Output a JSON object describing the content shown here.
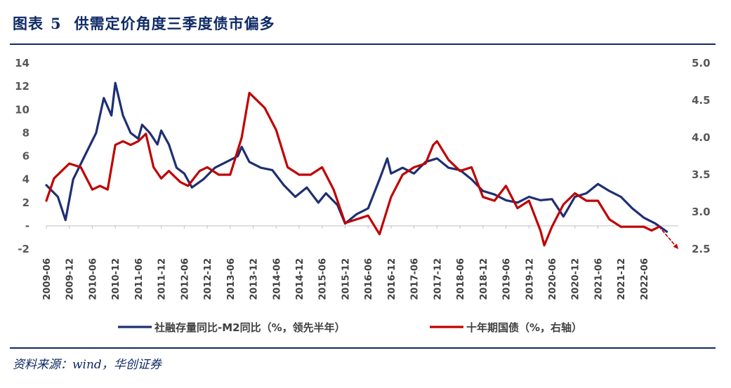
{
  "header": {
    "figure_label": "图表",
    "figure_number": "5",
    "title": "供需定价角度三季度债市偏多"
  },
  "source": "资料来源：wind，华创证券",
  "colors": {
    "navy": "#0f2a66",
    "series1": "#1f2f73",
    "series2": "#c00000",
    "axis_text": "#595959"
  },
  "chart_data": {
    "type": "line",
    "title": "供需定价角度三季度债市偏多",
    "xlabel": "",
    "y_left": {
      "lim": [
        -2,
        14
      ],
      "ticks": [
        14,
        12,
        10,
        8,
        6,
        4,
        2,
        0,
        -2
      ],
      "tick_labels": [
        "14",
        "12",
        "10",
        "8",
        "6",
        "4",
        "2",
        "-",
        "-2"
      ]
    },
    "y_right": {
      "lim": [
        2.5,
        5.0
      ],
      "ticks": [
        5.0,
        4.5,
        4.0,
        3.5,
        3.0,
        2.5
      ],
      "tick_labels": [
        "5.0",
        "4.5",
        "4.0",
        "3.5",
        "3.0",
        "2.5"
      ]
    },
    "x_range": [
      "2009-06",
      "2023-03"
    ],
    "x_tick_labels": [
      "2009-06",
      "2009-12",
      "2010-06",
      "2010-12",
      "2011-06",
      "2011-12",
      "2012-06",
      "2012-12",
      "2013-06",
      "2013-12",
      "2014-06",
      "2014-12",
      "2015-06",
      "2015-12",
      "2016-06",
      "2016-12",
      "2017-06",
      "2017-12",
      "2018-06",
      "2018-12",
      "2019-06",
      "2019-12",
      "2020-06",
      "2020-12",
      "2021-06",
      "2021-12",
      "2022-06"
    ],
    "legend": [
      "社融存量同比-M2同比（%，领先半年）",
      "十年期国债（%，右轴）"
    ],
    "series": [
      {
        "name": "社融存量同比-M2同比（%，领先半年）",
        "axis": "left",
        "points": [
          [
            "2009-06",
            3.5
          ],
          [
            "2009-09",
            2.5
          ],
          [
            "2009-11",
            0.5
          ],
          [
            "2010-01",
            4.0
          ],
          [
            "2010-04",
            6.0
          ],
          [
            "2010-07",
            8.0
          ],
          [
            "2010-09",
            11.0
          ],
          [
            "2010-11",
            9.5
          ],
          [
            "2010-12",
            12.3
          ],
          [
            "2011-02",
            9.5
          ],
          [
            "2011-04",
            8.0
          ],
          [
            "2011-06",
            7.5
          ],
          [
            "2011-07",
            8.7
          ],
          [
            "2011-09",
            8.0
          ],
          [
            "2011-11",
            7.0
          ],
          [
            "2011-12",
            8.2
          ],
          [
            "2012-02",
            7.0
          ],
          [
            "2012-04",
            5.0
          ],
          [
            "2012-06",
            4.5
          ],
          [
            "2012-08",
            3.3
          ],
          [
            "2012-11",
            4.0
          ],
          [
            "2013-02",
            5.0
          ],
          [
            "2013-05",
            5.5
          ],
          [
            "2013-08",
            6.0
          ],
          [
            "2013-09",
            6.8
          ],
          [
            "2013-11",
            5.5
          ],
          [
            "2014-02",
            5.0
          ],
          [
            "2014-05",
            4.8
          ],
          [
            "2014-08",
            3.5
          ],
          [
            "2014-11",
            2.5
          ],
          [
            "2015-02",
            3.3
          ],
          [
            "2015-05",
            2.0
          ],
          [
            "2015-07",
            2.8
          ],
          [
            "2015-10",
            1.8
          ],
          [
            "2015-12",
            0.2
          ],
          [
            "2016-03",
            1.0
          ],
          [
            "2016-06",
            1.5
          ],
          [
            "2016-09",
            4.0
          ],
          [
            "2016-11",
            5.8
          ],
          [
            "2016-12",
            4.5
          ],
          [
            "2017-03",
            5.0
          ],
          [
            "2017-06",
            4.5
          ],
          [
            "2017-09",
            5.5
          ],
          [
            "2017-12",
            5.8
          ],
          [
            "2018-03",
            5.0
          ],
          [
            "2018-06",
            4.8
          ],
          [
            "2018-09",
            4.0
          ],
          [
            "2018-12",
            3.0
          ],
          [
            "2019-03",
            2.7
          ],
          [
            "2019-06",
            2.2
          ],
          [
            "2019-09",
            2.0
          ],
          [
            "2019-12",
            2.5
          ],
          [
            "2020-03",
            2.2
          ],
          [
            "2020-06",
            2.3
          ],
          [
            "2020-09",
            0.8
          ],
          [
            "2020-12",
            2.5
          ],
          [
            "2021-03",
            2.8
          ],
          [
            "2021-06",
            3.6
          ],
          [
            "2021-09",
            3.0
          ],
          [
            "2021-12",
            2.5
          ],
          [
            "2022-03",
            1.5
          ],
          [
            "2022-06",
            0.7
          ],
          [
            "2022-09",
            0.2
          ],
          [
            "2022-12",
            -0.5
          ]
        ]
      },
      {
        "name": "十年期国债（%，右轴）",
        "axis": "right",
        "points": [
          [
            "2009-06",
            3.15
          ],
          [
            "2009-08",
            3.45
          ],
          [
            "2009-10",
            3.55
          ],
          [
            "2009-12",
            3.65
          ],
          [
            "2010-03",
            3.6
          ],
          [
            "2010-06",
            3.3
          ],
          [
            "2010-08",
            3.35
          ],
          [
            "2010-10",
            3.3
          ],
          [
            "2010-12",
            3.9
          ],
          [
            "2011-02",
            3.95
          ],
          [
            "2011-04",
            3.9
          ],
          [
            "2011-06",
            3.95
          ],
          [
            "2011-08",
            4.05
          ],
          [
            "2011-10",
            3.6
          ],
          [
            "2011-12",
            3.45
          ],
          [
            "2012-02",
            3.55
          ],
          [
            "2012-05",
            3.4
          ],
          [
            "2012-07",
            3.35
          ],
          [
            "2012-10",
            3.55
          ],
          [
            "2012-12",
            3.6
          ],
          [
            "2013-03",
            3.5
          ],
          [
            "2013-06",
            3.5
          ],
          [
            "2013-09",
            4.0
          ],
          [
            "2013-11",
            4.6
          ],
          [
            "2013-12",
            4.55
          ],
          [
            "2014-03",
            4.4
          ],
          [
            "2014-06",
            4.1
          ],
          [
            "2014-09",
            3.6
          ],
          [
            "2014-12",
            3.5
          ],
          [
            "2015-03",
            3.5
          ],
          [
            "2015-06",
            3.6
          ],
          [
            "2015-09",
            3.3
          ],
          [
            "2015-12",
            2.85
          ],
          [
            "2016-03",
            2.9
          ],
          [
            "2016-06",
            2.95
          ],
          [
            "2016-09",
            2.7
          ],
          [
            "2016-12",
            3.2
          ],
          [
            "2017-03",
            3.5
          ],
          [
            "2017-06",
            3.6
          ],
          [
            "2017-09",
            3.65
          ],
          [
            "2017-11",
            3.9
          ],
          [
            "2017-12",
            3.95
          ],
          [
            "2018-03",
            3.7
          ],
          [
            "2018-06",
            3.55
          ],
          [
            "2018-09",
            3.6
          ],
          [
            "2018-12",
            3.2
          ],
          [
            "2019-03",
            3.15
          ],
          [
            "2019-06",
            3.35
          ],
          [
            "2019-09",
            3.05
          ],
          [
            "2019-12",
            3.15
          ],
          [
            "2020-03",
            2.75
          ],
          [
            "2020-04",
            2.55
          ],
          [
            "2020-06",
            2.8
          ],
          [
            "2020-09",
            3.1
          ],
          [
            "2020-12",
            3.25
          ],
          [
            "2021-03",
            3.15
          ],
          [
            "2021-06",
            3.15
          ],
          [
            "2021-09",
            2.9
          ],
          [
            "2021-12",
            2.8
          ],
          [
            "2022-03",
            2.8
          ],
          [
            "2022-06",
            2.8
          ],
          [
            "2022-08",
            2.75
          ],
          [
            "2022-10",
            2.8
          ]
        ]
      },
      {
        "name": "forecast",
        "axis": "right",
        "dashed": true,
        "points": [
          [
            "2022-10",
            2.8
          ],
          [
            "2023-03",
            2.5
          ]
        ]
      }
    ]
  }
}
